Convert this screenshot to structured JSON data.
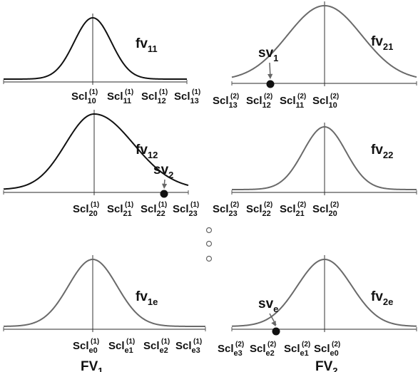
{
  "diagram": {
    "footers": {
      "left": {
        "base": "FV",
        "sub": "1"
      },
      "right": {
        "base": "FV",
        "sub": "2"
      }
    },
    "panels": [
      {
        "id": "p11",
        "label": {
          "base": "fv",
          "sub": "11"
        },
        "style": "dark",
        "scl": [
          {
            "sup": "(1)",
            "sub": "10"
          },
          {
            "sup": "(1)",
            "sub": "11"
          },
          {
            "sup": "(1)",
            "sub": "12"
          },
          {
            "sup": "(1)",
            "sub": "13"
          }
        ]
      },
      {
        "id": "p21",
        "label": {
          "base": "fv",
          "sub": "21"
        },
        "style": "grey",
        "scl": [
          {
            "sup": "(2)",
            "sub": "13"
          },
          {
            "sup": "(2)",
            "sub": "12"
          },
          {
            "sup": "(2)",
            "sub": "11"
          },
          {
            "sup": "(2)",
            "sub": "10"
          }
        ],
        "marker": {
          "base": "sv",
          "sub": "1"
        }
      },
      {
        "id": "p12",
        "label": {
          "base": "fv",
          "sub": "12"
        },
        "style": "dark",
        "scl": [
          {
            "sup": "(1)",
            "sub": "20"
          },
          {
            "sup": "(1)",
            "sub": "21"
          },
          {
            "sup": "(1)",
            "sub": "22"
          },
          {
            "sup": "(1)",
            "sub": "23"
          }
        ],
        "marker": {
          "base": "sv",
          "sub": "2"
        }
      },
      {
        "id": "p22",
        "label": {
          "base": "fv",
          "sub": "22"
        },
        "style": "grey",
        "scl": [
          {
            "sup": "(2)",
            "sub": "23"
          },
          {
            "sup": "(2)",
            "sub": "22"
          },
          {
            "sup": "(2)",
            "sub": "21"
          },
          {
            "sup": "(2)",
            "sub": "20"
          }
        ]
      },
      {
        "id": "p1e",
        "label": {
          "base": "fv",
          "sub": "1e"
        },
        "style": "grey",
        "scl": [
          {
            "sup": "(1)",
            "sub": "e0"
          },
          {
            "sup": "(1)",
            "sub": "e1"
          },
          {
            "sup": "(1)",
            "sub": "e2"
          },
          {
            "sup": "(1)",
            "sub": "e3"
          }
        ]
      },
      {
        "id": "p2e",
        "label": {
          "base": "fv",
          "sub": "2e"
        },
        "style": "grey",
        "scl": [
          {
            "sup": "(2)",
            "sub": "e3"
          },
          {
            "sup": "(2)",
            "sub": "e2"
          },
          {
            "sup": "(2)",
            "sub": "e1"
          },
          {
            "sup": "(2)",
            "sub": "e0"
          }
        ],
        "marker": {
          "base": "sv",
          "sub": "e"
        }
      }
    ],
    "scl_base": "Scl"
  }
}
